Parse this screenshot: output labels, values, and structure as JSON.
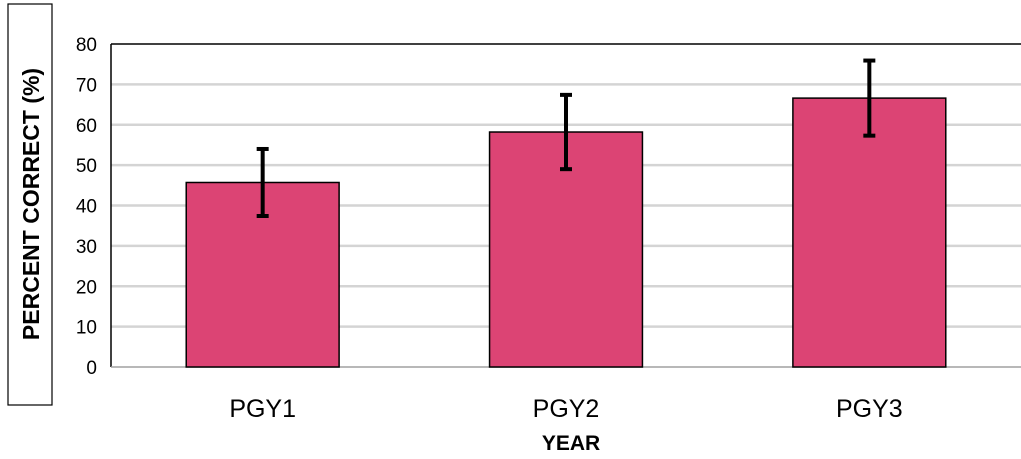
{
  "chart_data": {
    "type": "bar",
    "categories": [
      "PGY1",
      "PGY2",
      "PGY3"
    ],
    "values": [
      45.7,
      58.2,
      66.6
    ],
    "error": [
      8.3,
      9.2,
      9.3
    ],
    "xlabel": "YEAR",
    "ylabel": "PERCENT CORRECT (%)",
    "ylim": [
      0,
      80
    ],
    "yticks": [
      0,
      10,
      20,
      30,
      40,
      50,
      60,
      70,
      80
    ],
    "grid": true,
    "legend": "none",
    "bar_color": "#dc4474",
    "error_bar_color": "#000000"
  }
}
